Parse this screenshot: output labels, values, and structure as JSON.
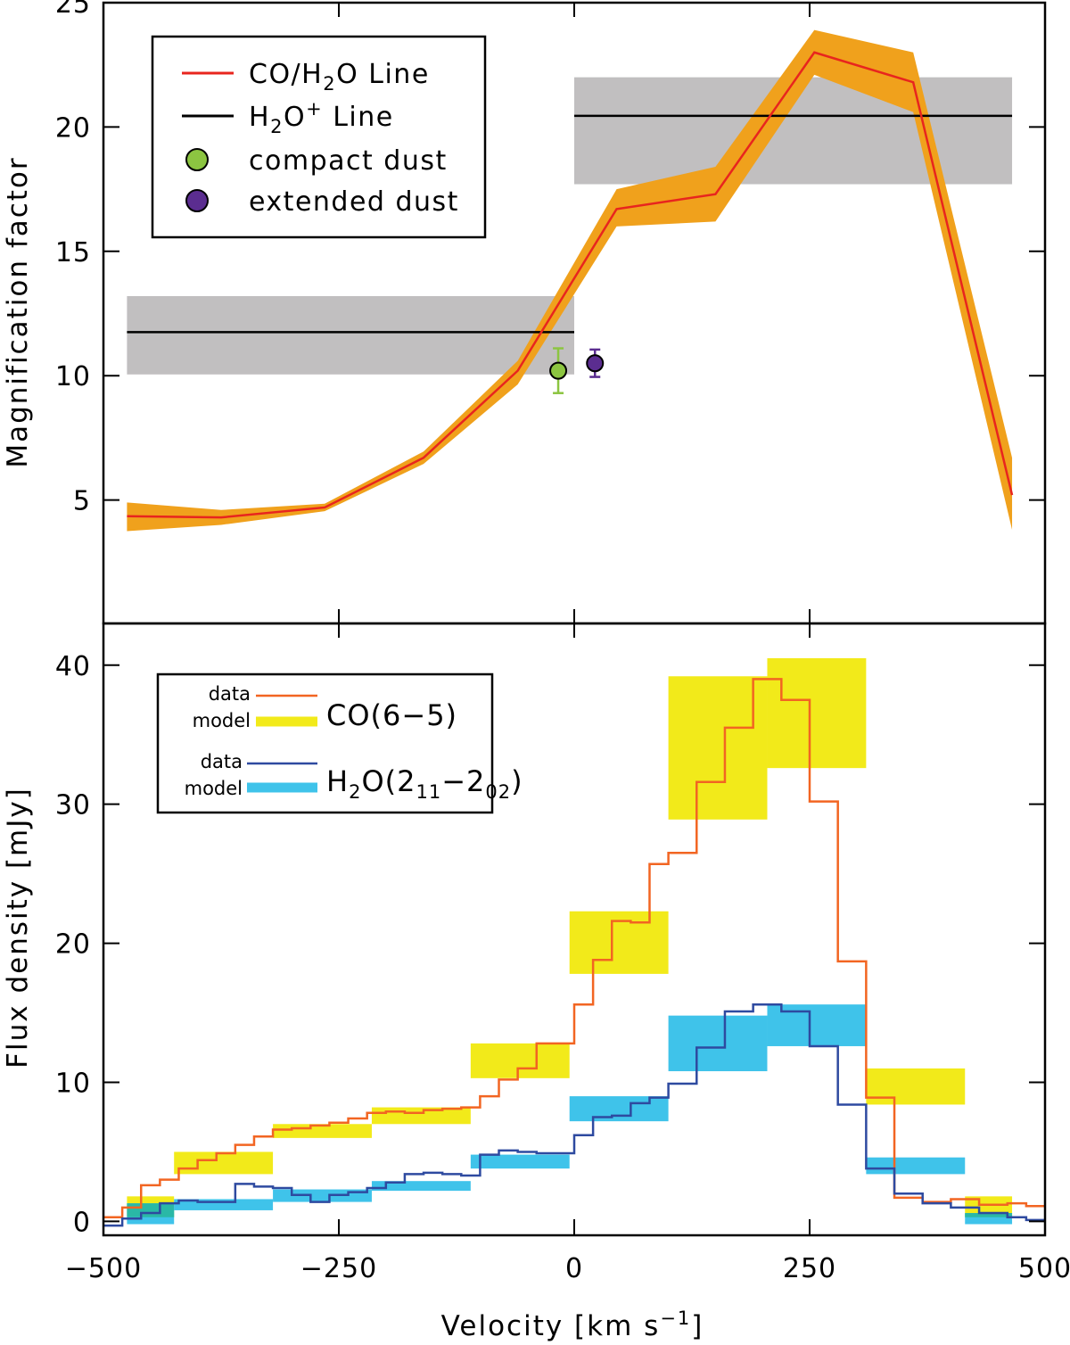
{
  "chart_data": [
    {
      "type": "line",
      "ylabel": "Magnification factor",
      "xlim": [
        -500,
        500
      ],
      "ylim": [
        0,
        25
      ],
      "yticks": [
        "5",
        "10",
        "15",
        "20",
        "25"
      ],
      "colors": {
        "line": "#e8251e",
        "band": "#f0a11c",
        "h2o_plus": "#000000",
        "h2o_plus_band": "#c1bfc0",
        "compact": "#8cc541",
        "extended": "#5b2d90"
      },
      "co_h2o_line": {
        "x": [
          -475,
          -375,
          -265,
          -160,
          -60,
          45,
          150,
          255,
          360,
          465
        ],
        "y": [
          4.35,
          4.3,
          4.7,
          6.7,
          10.2,
          16.7,
          17.3,
          23.0,
          21.8,
          5.2
        ],
        "y_upper": [
          4.9,
          4.6,
          4.85,
          6.95,
          10.6,
          17.5,
          18.4,
          23.9,
          23.0,
          6.7
        ],
        "y_lower": [
          3.75,
          4.0,
          4.55,
          6.45,
          9.65,
          16.0,
          16.2,
          22.1,
          20.6,
          3.8
        ]
      },
      "h2o_plus_line": [
        {
          "x_range": [
            -475,
            0
          ],
          "y": 11.75,
          "y_low": 10.05,
          "y_high": 13.2
        },
        {
          "x_range": [
            0,
            465
          ],
          "y": 20.45,
          "y_low": 17.7,
          "y_high": 22.0
        }
      ],
      "points": [
        {
          "name": "compact dust",
          "x": -17,
          "y": 10.2,
          "yerr_low": 9.3,
          "yerr_high": 11.1
        },
        {
          "name": "extended dust",
          "x": 22,
          "y": 10.5,
          "yerr_low": 9.95,
          "yerr_high": 11.05
        }
      ],
      "legend": {
        "placement": "top-left",
        "entries": [
          {
            "pre": "CO/H",
            "sub": "2",
            "post": "O Line"
          },
          {
            "pre": "H",
            "sub": "2",
            "sup": "O",
            "plus": "+",
            "post": " Line"
          },
          {
            "label": "compact dust"
          },
          {
            "label": "extended dust"
          }
        ]
      }
    },
    {
      "type": "step",
      "xlabel_main": "Velocity [km s",
      "xlabel_sup": "−1",
      "xlabel_end": "]",
      "ylabel": "Flux density [mJy]",
      "xlim": [
        -500,
        500
      ],
      "ylim": [
        -1,
        43
      ],
      "xticks": [
        "−500",
        "−250",
        "0",
        "250",
        "500"
      ],
      "yticks": [
        "0",
        "10",
        "20",
        "30",
        "40"
      ],
      "colors": {
        "co_data": "#f26522",
        "co_model": "#f2ea1a",
        "h2o_data": "#2e4aa0",
        "h2o_model": "#3fc3ea",
        "overlap": "#2ab8a6"
      },
      "co_data": {
        "edges": [
          -500,
          -480,
          -460,
          -440,
          -420,
          -400,
          -380,
          -360,
          -340,
          -320,
          -300,
          -280,
          -260,
          -240,
          -220,
          -200,
          -180,
          -160,
          -140,
          -120,
          -100,
          -80,
          -60,
          -40,
          -20,
          0,
          20,
          40,
          60,
          80,
          100,
          130,
          160,
          190,
          220,
          250,
          280,
          310,
          340,
          370,
          400,
          430,
          460,
          480,
          500
        ],
        "values": [
          0.3,
          1.0,
          2.6,
          3.0,
          3.8,
          4.4,
          4.9,
          5.5,
          6.1,
          6.6,
          6.7,
          6.9,
          7.1,
          7.4,
          7.8,
          7.9,
          7.8,
          8.0,
          8.1,
          8.2,
          9.0,
          10.2,
          11.0,
          12.8,
          12.8,
          15.6,
          18.8,
          21.6,
          21.5,
          25.7,
          26.5,
          31.6,
          35.5,
          39.0,
          37.5,
          30.2,
          18.7,
          8.9,
          1.7,
          1.4,
          1.6,
          1.2,
          1.3,
          1.1
        ]
      },
      "h2o_data": {
        "edges": [
          -500,
          -480,
          -460,
          -440,
          -420,
          -400,
          -380,
          -360,
          -340,
          -320,
          -300,
          -280,
          -260,
          -240,
          -220,
          -200,
          -180,
          -160,
          -140,
          -120,
          -100,
          -80,
          -60,
          -40,
          -20,
          0,
          20,
          40,
          60,
          80,
          100,
          130,
          160,
          190,
          220,
          250,
          280,
          310,
          340,
          370,
          400,
          430,
          460,
          480,
          500
        ],
        "values": [
          -0.3,
          0.2,
          0.6,
          1.3,
          1.5,
          1.4,
          1.4,
          2.7,
          2.5,
          2.4,
          1.9,
          1.4,
          1.9,
          2.1,
          2.4,
          2.8,
          3.4,
          3.5,
          3.4,
          3.3,
          4.8,
          5.1,
          5.0,
          4.9,
          4.9,
          6.2,
          7.5,
          7.6,
          8.5,
          8.9,
          9.9,
          12.5,
          15.1,
          15.6,
          15.1,
          12.6,
          8.4,
          3.8,
          2.0,
          1.3,
          1.0,
          0.6,
          0.3,
          0.1
        ]
      },
      "co_model": [
        {
          "x": [
            -475,
            -425
          ],
          "y": [
            0.3,
            1.8
          ]
        },
        {
          "x": [
            -425,
            -320
          ],
          "y": [
            3.4,
            5.0
          ]
        },
        {
          "x": [
            -320,
            -215
          ],
          "y": [
            6.0,
            7.0
          ]
        },
        {
          "x": [
            -215,
            -110
          ],
          "y": [
            7.0,
            8.2
          ]
        },
        {
          "x": [
            -110,
            -5
          ],
          "y": [
            10.3,
            12.8
          ]
        },
        {
          "x": [
            -5,
            100
          ],
          "y": [
            17.8,
            22.3
          ]
        },
        {
          "x": [
            100,
            205
          ],
          "y": [
            28.9,
            39.2
          ]
        },
        {
          "x": [
            205,
            310
          ],
          "y": [
            32.6,
            40.5
          ]
        },
        {
          "x": [
            310,
            415
          ],
          "y": [
            8.4,
            11.0
          ]
        },
        {
          "x": [
            415,
            465
          ],
          "y": [
            0.3,
            1.8
          ]
        }
      ],
      "h2o_model": [
        {
          "x": [
            -475,
            -425
          ],
          "y": [
            -0.2,
            1.3
          ]
        },
        {
          "x": [
            -425,
            -320
          ],
          "y": [
            0.8,
            1.6
          ]
        },
        {
          "x": [
            -320,
            -215
          ],
          "y": [
            1.4,
            2.3
          ]
        },
        {
          "x": [
            -215,
            -110
          ],
          "y": [
            2.2,
            2.9
          ]
        },
        {
          "x": [
            -110,
            -5
          ],
          "y": [
            3.8,
            4.8
          ]
        },
        {
          "x": [
            -5,
            100
          ],
          "y": [
            7.2,
            9.0
          ]
        },
        {
          "x": [
            100,
            205
          ],
          "y": [
            10.8,
            14.8
          ]
        },
        {
          "x": [
            205,
            310
          ],
          "y": [
            12.6,
            15.6
          ]
        },
        {
          "x": [
            310,
            415
          ],
          "y": [
            3.4,
            4.6
          ]
        },
        {
          "x": [
            415,
            465
          ],
          "y": [
            -0.2,
            0.6
          ]
        }
      ],
      "legend": {
        "placement": "top-left",
        "data_label": "data",
        "model_label": "model",
        "co_label": "CO(6−5)",
        "h2o_pre": "H",
        "h2o_sub1": "2",
        "h2o_mid": "O(2",
        "h2o_sub2": "11",
        "h2o_dash": "−2",
        "h2o_sub3": "02",
        "h2o_end": ")"
      }
    }
  ]
}
